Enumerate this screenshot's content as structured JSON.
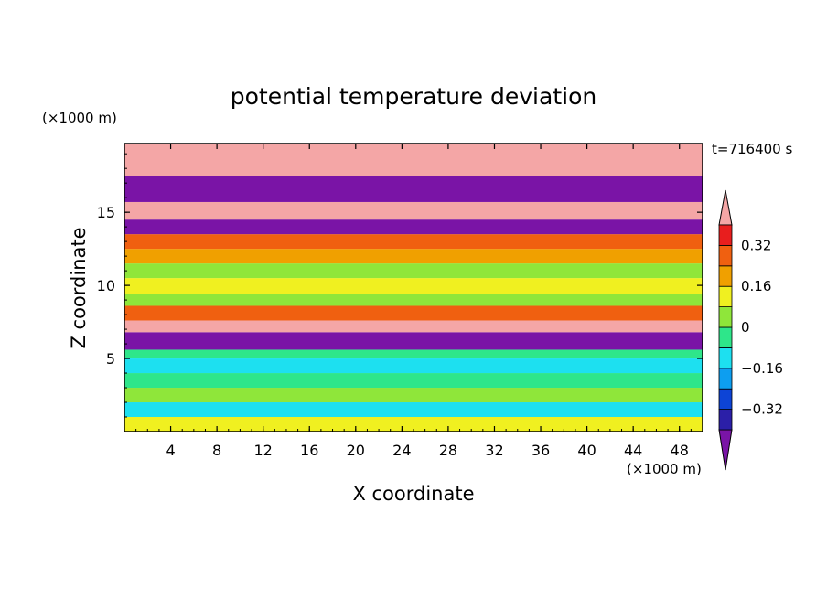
{
  "chart_data": {
    "type": "heatmap",
    "title": "potential temperature deviation",
    "xlabel": "X coordinate",
    "ylabel": "Z coordinate",
    "x_unit": "(×1000 m)",
    "y_unit": "(×1000 m)",
    "time_label": "t=716400 s",
    "xlim": [
      0,
      50
    ],
    "ylim": [
      0,
      19.7
    ],
    "x_ticks": [
      4,
      8,
      12,
      16,
      20,
      24,
      28,
      32,
      36,
      40,
      44,
      48
    ],
    "y_ticks": [
      5,
      10,
      15
    ],
    "colorbar": {
      "levels": [
        -0.4,
        -0.32,
        -0.24,
        -0.16,
        -0.08,
        0,
        0.08,
        0.16,
        0.24,
        0.32,
        0.4
      ],
      "tick_labels": [
        "0.32",
        "0.16",
        "0",
        "−0.16",
        "−0.32"
      ],
      "tick_values": [
        0.32,
        0.16,
        0,
        -0.16,
        -0.32
      ],
      "colors": [
        "#7a14a6",
        "#2b1fa8",
        "#0d44d6",
        "#0d9ef0",
        "#1de0f0",
        "#2ee68a",
        "#8fe63a",
        "#f0f020",
        "#f0a000",
        "#f06010",
        "#e81e1e",
        "#f4a6a6"
      ],
      "extend": "both"
    },
    "bands": [
      {
        "z": [
          0,
          1.0
        ],
        "value": 0.12
      },
      {
        "z": [
          1.0,
          2.0
        ],
        "value": -0.12
      },
      {
        "z": [
          2.0,
          3.0
        ],
        "value": 0.05
      },
      {
        "z": [
          3.0,
          4.0
        ],
        "value": -0.05
      },
      {
        "z": [
          4.0,
          5.0
        ],
        "value": -0.09
      },
      {
        "z": [
          5.0,
          5.6
        ],
        "value": -0.02
      },
      {
        "z": [
          5.6,
          6.8
        ],
        "value": -0.45
      },
      {
        "z": [
          6.8,
          7.6
        ],
        "value": 0.45
      },
      {
        "z": [
          7.6,
          8.6
        ],
        "value": 0.28
      },
      {
        "z": [
          8.6,
          9.4
        ],
        "value": 0.04
      },
      {
        "z": [
          9.4,
          10.5
        ],
        "value": 0.1
      },
      {
        "z": [
          10.5,
          11.5
        ],
        "value": 0.04
      },
      {
        "z": [
          11.5,
          12.5
        ],
        "value": 0.18
      },
      {
        "z": [
          12.5,
          13.5
        ],
        "value": 0.3
      },
      {
        "z": [
          13.5,
          14.5
        ],
        "value": -0.45
      },
      {
        "z": [
          14.5,
          15.7
        ],
        "value": 0.45
      },
      {
        "z": [
          15.7,
          17.5
        ],
        "value": -0.45
      },
      {
        "z": [
          17.5,
          19.7
        ],
        "value": 0.45
      }
    ]
  }
}
